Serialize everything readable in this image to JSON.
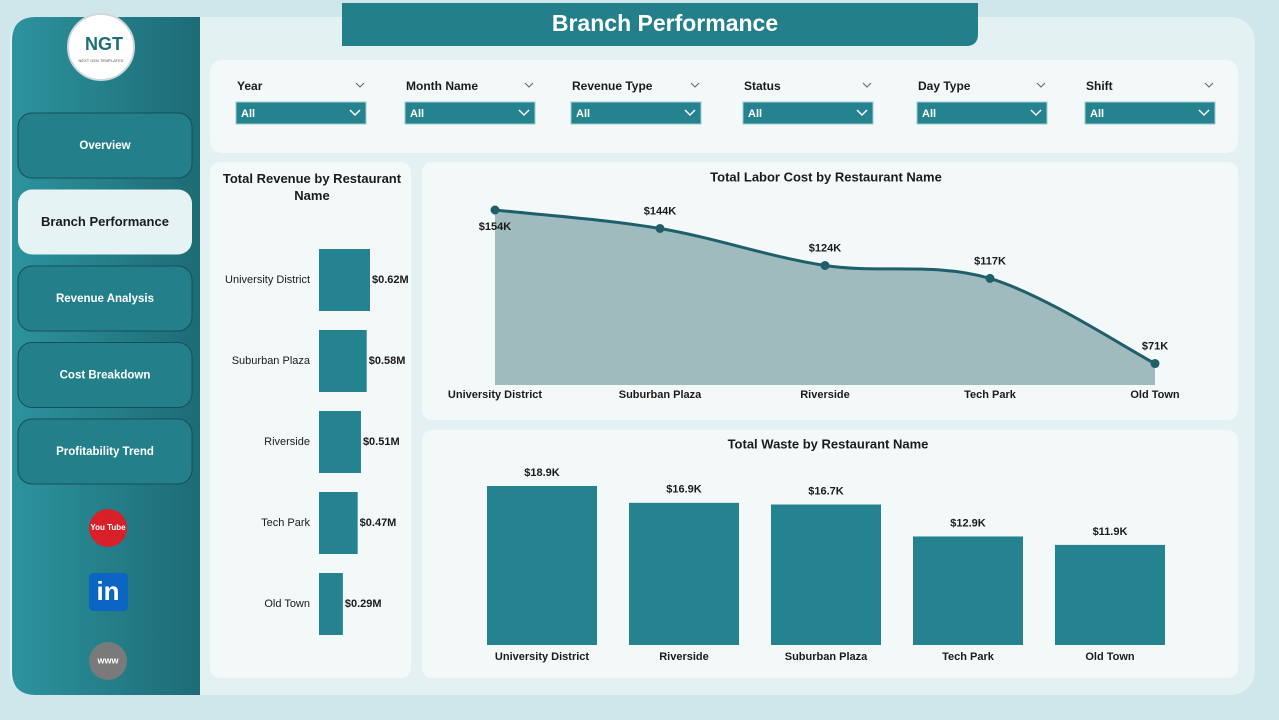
{
  "header": {
    "title": "Branch Performance",
    "logo": "NGT",
    "logo_subtitle": "NEXT GEN TEMPLATES"
  },
  "nav": {
    "items": [
      "Overview",
      "Branch Performance",
      "Revenue Analysis",
      "Cost Breakdown",
      "Profitability Trend"
    ],
    "active": 1
  },
  "social": [
    "You Tube",
    "in",
    "www"
  ],
  "filters": [
    {
      "label": "Year",
      "value": "All"
    },
    {
      "label": "Month Name",
      "value": "All"
    },
    {
      "label": "Revenue Type",
      "value": "All"
    },
    {
      "label": "Status",
      "value": "All"
    },
    {
      "label": "Day Type",
      "value": "All"
    },
    {
      "label": "Shift",
      "value": "All"
    }
  ],
  "chart_data": [
    {
      "type": "bar",
      "orientation": "horizontal",
      "title": "Total Revenue by Restaurant Name",
      "categories": [
        "University District",
        "Suburban Plaza",
        "Riverside",
        "Tech Park",
        "Old Town"
      ],
      "values": [
        0.62,
        0.58,
        0.51,
        0.47,
        0.29
      ],
      "value_labels": [
        "$0.62M",
        "$0.58M",
        "$0.51M",
        "$0.47M",
        "$0.29M"
      ],
      "color": "#25838f"
    },
    {
      "type": "area",
      "title": "Total Labor Cost by Restaurant Name",
      "categories": [
        "University District",
        "Suburban Plaza",
        "Riverside",
        "Tech Park",
        "Old Town"
      ],
      "values": [
        154,
        144,
        124,
        117,
        71
      ],
      "value_labels": [
        "$154K",
        "$144K",
        "$124K",
        "$117K",
        "$71K"
      ],
      "color": "#1f5f6b",
      "fill": "#9ab7bb"
    },
    {
      "type": "bar",
      "orientation": "vertical",
      "title": "Total Waste by Restaurant Name",
      "categories": [
        "University District",
        "Riverside",
        "Suburban Plaza",
        "Tech Park",
        "Old Town"
      ],
      "values": [
        18.9,
        16.9,
        16.7,
        12.9,
        11.9
      ],
      "value_labels": [
        "$18.9K",
        "$16.9K",
        "$16.7K",
        "$12.9K",
        "$11.9K"
      ],
      "color": "#25838f"
    }
  ]
}
